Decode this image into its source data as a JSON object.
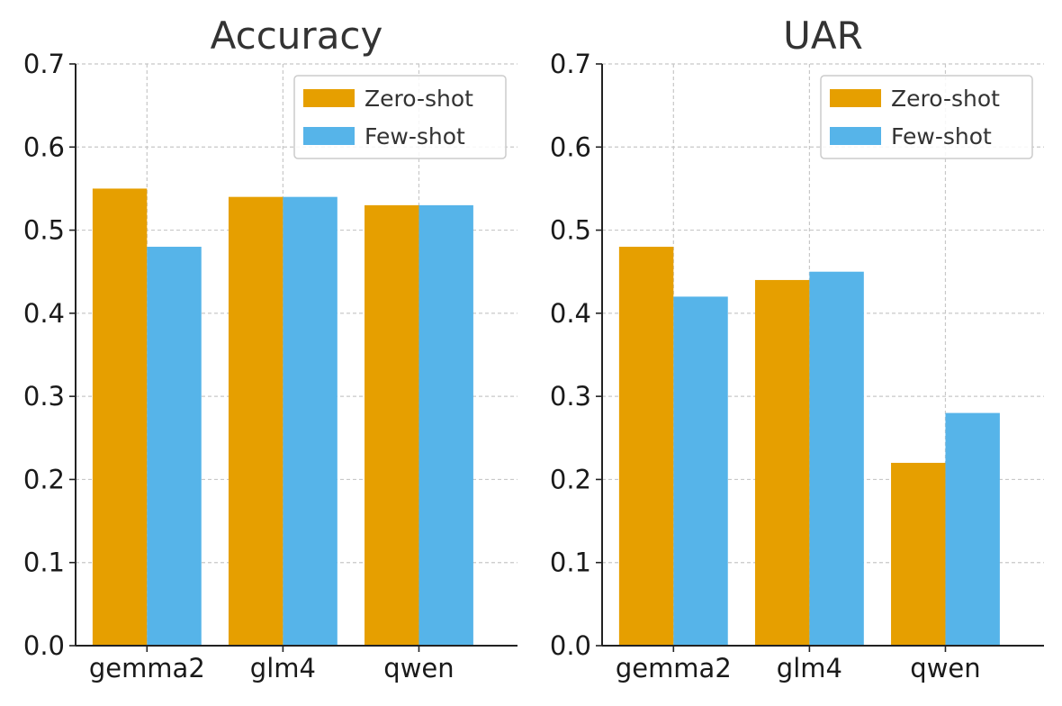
{
  "chart_data": [
    {
      "type": "bar",
      "title": "Accuracy",
      "xlabel": "",
      "ylabel": "",
      "categories": [
        "gemma2",
        "glm4",
        "qwen"
      ],
      "series": [
        {
          "name": "Zero-shot",
          "color": "#E69F00",
          "values": [
            0.55,
            0.54,
            0.53
          ]
        },
        {
          "name": "Few-shot",
          "color": "#56B4E9",
          "values": [
            0.48,
            0.54,
            0.53
          ]
        }
      ],
      "ylim": [
        0,
        0.7
      ],
      "yticks": [
        0.0,
        0.1,
        0.2,
        0.3,
        0.4,
        0.5,
        0.6,
        0.7
      ],
      "ytick_labels": [
        "0.0",
        "0.1",
        "0.2",
        "0.3",
        "0.4",
        "0.5",
        "0.6",
        "0.7"
      ],
      "grid": true,
      "legend_position": "top-right"
    },
    {
      "type": "bar",
      "title": "UAR",
      "xlabel": "",
      "ylabel": "",
      "categories": [
        "gemma2",
        "glm4",
        "qwen"
      ],
      "series": [
        {
          "name": "Zero-shot",
          "color": "#E69F00",
          "values": [
            0.48,
            0.44,
            0.22
          ]
        },
        {
          "name": "Few-shot",
          "color": "#56B4E9",
          "values": [
            0.42,
            0.45,
            0.28
          ]
        }
      ],
      "ylim": [
        0,
        0.7
      ],
      "yticks": [
        0.0,
        0.1,
        0.2,
        0.3,
        0.4,
        0.5,
        0.6,
        0.7
      ],
      "ytick_labels": [
        "0.0",
        "0.1",
        "0.2",
        "0.3",
        "0.4",
        "0.5",
        "0.6",
        "0.7"
      ],
      "grid": true,
      "legend_position": "top-right"
    }
  ]
}
